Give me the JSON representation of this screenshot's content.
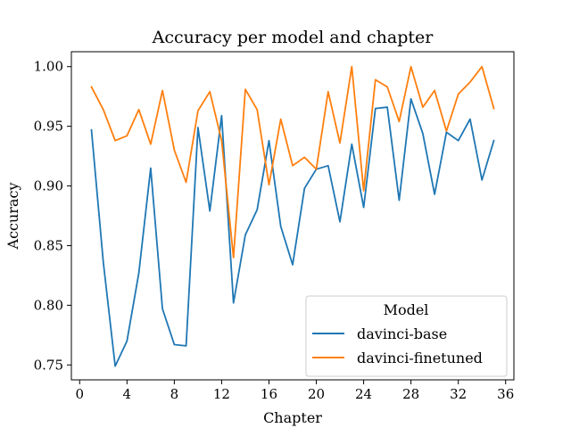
{
  "chart_data": {
    "type": "line",
    "title": "Accuracy per model and chapter",
    "xlabel": "Chapter",
    "ylabel": "Accuracy",
    "xlim": [
      -0.7,
      36.7
    ],
    "ylim": [
      0.7375,
      1.0125
    ],
    "xticks": [
      0,
      4,
      8,
      12,
      16,
      20,
      24,
      28,
      32,
      36
    ],
    "xtick_labels": [
      "0",
      "4",
      "8",
      "12",
      "16",
      "20",
      "24",
      "28",
      "32",
      "36"
    ],
    "yticks": [
      0.75,
      0.8,
      0.85,
      0.9,
      0.95,
      1.0
    ],
    "ytick_labels": [
      "0.75",
      "0.80",
      "0.85",
      "0.90",
      "0.95",
      "1.00"
    ],
    "grid": false,
    "legend": {
      "title": "Model",
      "position": "bottom-right"
    },
    "x": [
      1,
      2,
      3,
      4,
      5,
      6,
      7,
      8,
      9,
      10,
      11,
      12,
      13,
      14,
      15,
      16,
      17,
      18,
      19,
      20,
      21,
      22,
      23,
      24,
      25,
      26,
      27,
      28,
      29,
      30,
      31,
      32,
      33,
      34,
      35
    ],
    "series": [
      {
        "name": "davinci-base",
        "color": "#1f77b4",
        "values": [
          0.947,
          0.836,
          0.749,
          0.77,
          0.827,
          0.915,
          0.797,
          0.767,
          0.766,
          0.949,
          0.879,
          0.959,
          0.802,
          0.859,
          0.88,
          0.938,
          0.866,
          0.834,
          0.898,
          0.914,
          0.917,
          0.87,
          0.935,
          0.882,
          0.965,
          0.966,
          0.888,
          0.973,
          0.944,
          0.893,
          0.945,
          0.938,
          0.956,
          0.905,
          0.938
        ]
      },
      {
        "name": "davinci-finetuned",
        "color": "#ff7f0e",
        "values": [
          0.983,
          0.964,
          0.938,
          0.942,
          0.964,
          0.935,
          0.98,
          0.93,
          0.903,
          0.963,
          0.979,
          0.938,
          0.84,
          0.981,
          0.964,
          0.901,
          0.956,
          0.917,
          0.924,
          0.914,
          0.979,
          0.936,
          1.0,
          0.896,
          0.989,
          0.983,
          0.954,
          1.0,
          0.966,
          0.98,
          0.946,
          0.977,
          0.987,
          1.0,
          0.965
        ]
      }
    ]
  }
}
